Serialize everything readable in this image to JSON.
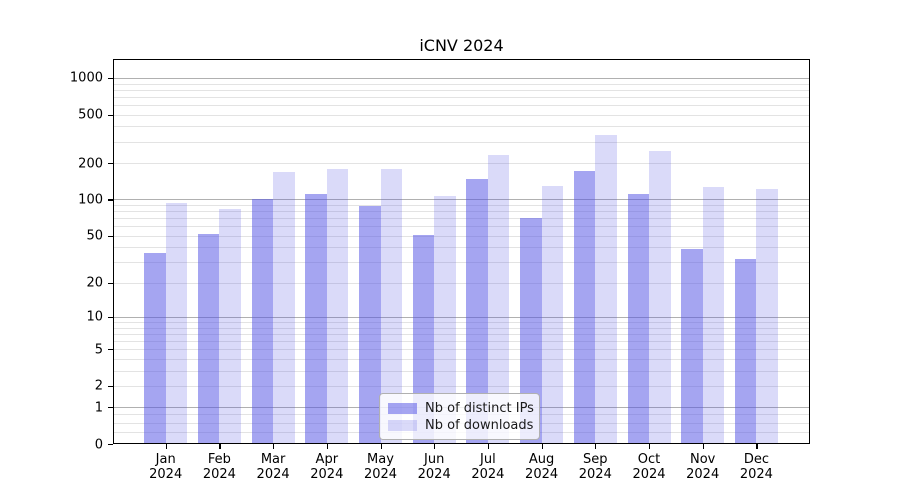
{
  "title": "iCNV 2024",
  "chart_data": {
    "type": "bar",
    "title": "iCNV 2024",
    "categories": [
      "Jan 2024",
      "Feb 2024",
      "Mar 2024",
      "Apr 2024",
      "May 2024",
      "Jun 2024",
      "Jul 2024",
      "Aug 2024",
      "Sep 2024",
      "Oct 2024",
      "Nov 2024",
      "Dec 2024"
    ],
    "series": [
      {
        "name": "Nb of distinct IPs",
        "color": "rgba(82,82,228,0.52)",
        "values": [
          36,
          52,
          100,
          112,
          88,
          51,
          148,
          70,
          172,
          112,
          39,
          32
        ]
      },
      {
        "name": "Nb of downloads",
        "color": "rgba(82,82,228,0.21)",
        "values": [
          94,
          83,
          168,
          178,
          180,
          106,
          233,
          129,
          340,
          252,
          128,
          121
        ]
      }
    ],
    "xlabel": "",
    "ylabel": "",
    "yscale": "log10(1+v)",
    "yticks": [
      0,
      1,
      2,
      5,
      10,
      20,
      50,
      100,
      200,
      500,
      1000
    ],
    "ylim": [
      0,
      1430
    ],
    "grid": "horizontal",
    "legend_position": "inside-bottom-center"
  },
  "colors": {
    "background": "#ffffff",
    "axis": "#000000",
    "major_grid": "#b0b0b0",
    "minor_grid": "#e3e3e3",
    "legend_border": "#b0b0b0",
    "text": "#000000"
  }
}
